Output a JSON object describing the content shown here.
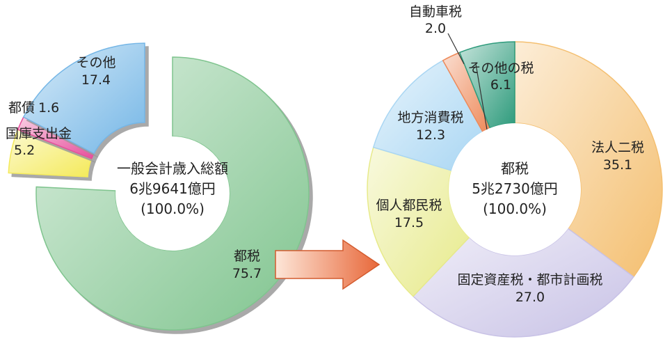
{
  "chart_data": [
    {
      "type": "pie",
      "title": "",
      "center_label": [
        "一般会計歳入総額",
        "6兆9641億円",
        "(100.0%)"
      ],
      "slices": [
        {
          "name": "都税",
          "value": 75.7,
          "color": "#7fc48e"
        },
        {
          "name": "国庫支出金",
          "value": 5.2,
          "color": "#f4ea5a"
        },
        {
          "name": "都債",
          "value": 1.6,
          "color": "#e64f9c"
        },
        {
          "name": "その他",
          "value": 17.4,
          "color": "#74b6e6"
        }
      ]
    },
    {
      "type": "pie",
      "title": "",
      "center_label": [
        "都税",
        "5兆2730億円",
        "(100.0%)"
      ],
      "slices": [
        {
          "name": "法人二税",
          "value": 35.1,
          "color": "#f4bf70"
        },
        {
          "name": "固定資産税・都市計画税",
          "value": 27.0,
          "color": "#c8c2e6"
        },
        {
          "name": "個人都民税",
          "value": 17.5,
          "color": "#e7ea8a"
        },
        {
          "name": "地方消費税",
          "value": 12.3,
          "color": "#a9d6f3"
        },
        {
          "name": "自動車税",
          "value": 2.0,
          "color": "#ee8a5a"
        },
        {
          "name": "その他の税",
          "value": 6.1,
          "color": "#2e9b7c"
        }
      ]
    }
  ]
}
